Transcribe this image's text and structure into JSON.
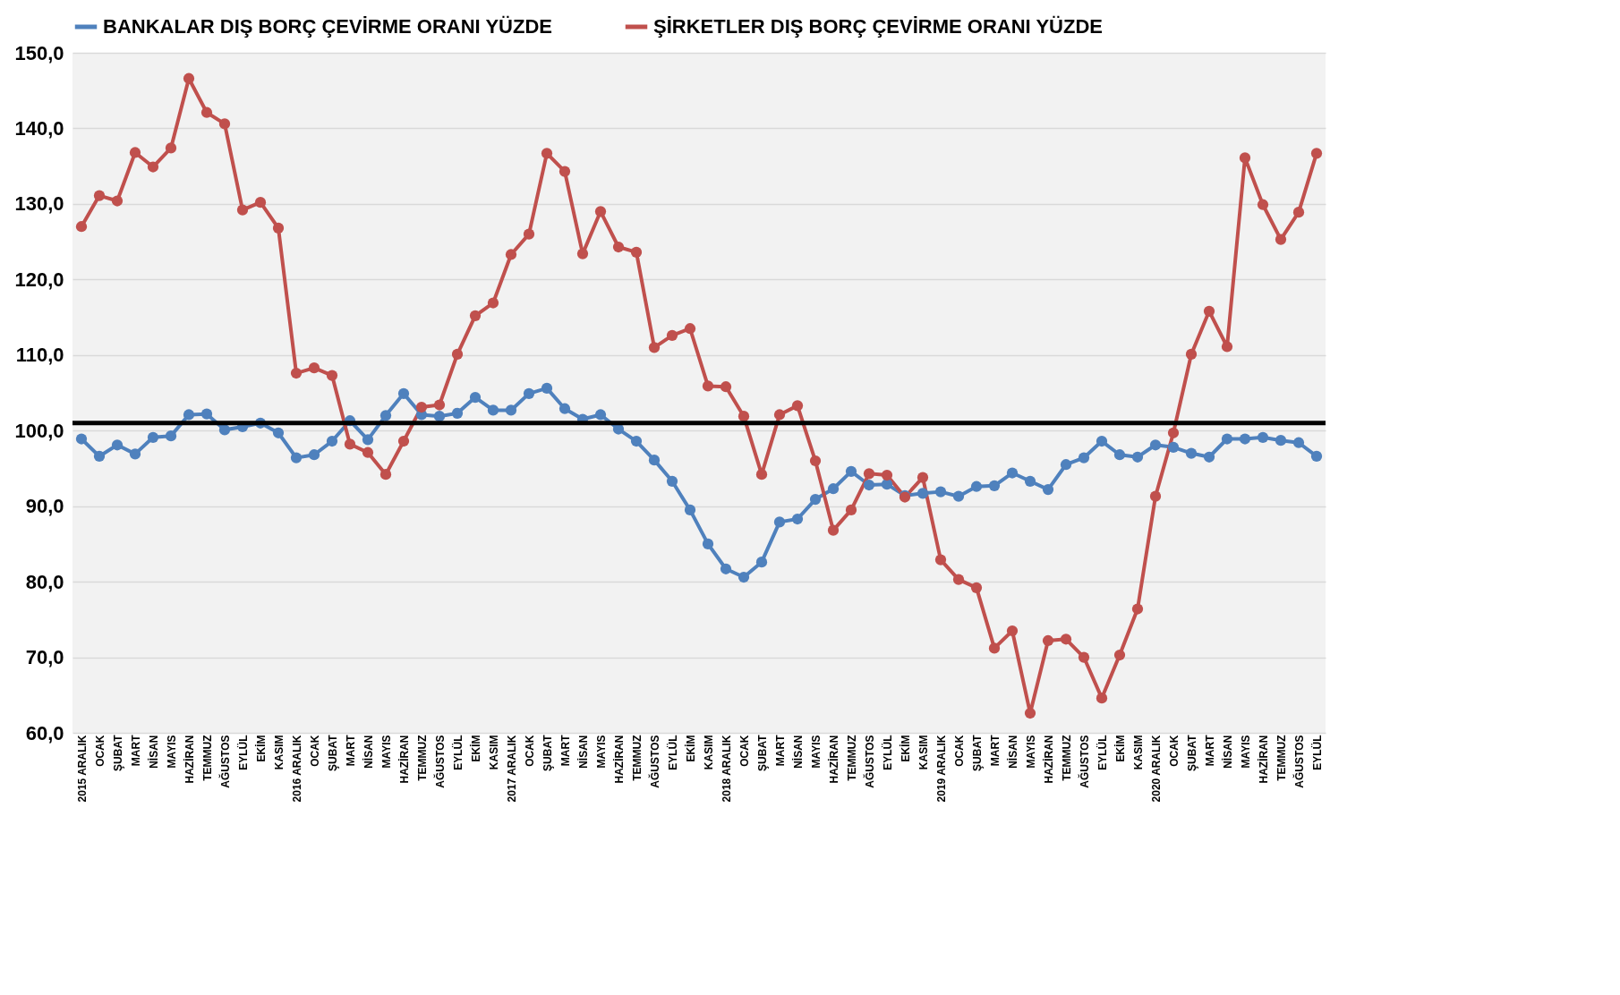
{
  "chart_data": {
    "type": "line",
    "categories": [
      "2015 ARALIK",
      "OCAK",
      "ŞUBAT",
      "MART",
      "NİSAN",
      "MAYIS",
      "HAZİRAN",
      "TEMMUZ",
      "AĞUSTOS",
      "EYLÜL",
      "EKİM",
      "KASIM",
      "2016 ARALIK",
      "OCAK",
      "ŞUBAT",
      "MART",
      "NİSAN",
      "MAYIS",
      "HAZİRAN",
      "TEMMUZ",
      "AĞUSTOS",
      "EYLÜL",
      "EKİM",
      "KASIM",
      "2017 ARALIK",
      "OCAK",
      "ŞUBAT",
      "MART",
      "NİSAN",
      "MAYIS",
      "HAZİRAN",
      "TEMMUZ",
      "AĞUSTOS",
      "EYLÜL",
      "EKİM",
      "KASIM",
      "2018 ARALIK",
      "OCAK",
      "ŞUBAT",
      "MART",
      "NİSAN",
      "MAYIS",
      "HAZİRAN",
      "TEMMUZ",
      "AĞUSTOS",
      "EYLÜL",
      "EKİM",
      "KASIM",
      "2019 ARALIK",
      "OCAK",
      "ŞUBAT",
      "MART",
      "NİSAN",
      "MAYIS",
      "HAZİRAN",
      "TEMMUZ",
      "AĞUSTOS",
      "EYLÜL",
      "EKİM",
      "KASIM",
      "2020 ARALIK",
      "OCAK",
      "ŞUBAT",
      "MART",
      "NİSAN",
      "MAYIS",
      "HAZİRAN",
      "TEMMUZ",
      "AĞUSTOS",
      "EYLÜL"
    ],
    "series": [
      {
        "name": "BANKALAR DIŞ BORÇ ÇEVİRME ORANI YÜZDE",
        "color": "#4f81bd",
        "values": [
          98.9,
          96.6,
          98.1,
          96.9,
          99.1,
          99.3,
          102.1,
          102.2,
          100.1,
          100.5,
          101.0,
          99.7,
          96.4,
          96.8,
          98.6,
          101.3,
          98.8,
          102.0,
          104.9,
          102.1,
          101.9,
          102.3,
          104.4,
          102.7,
          102.7,
          104.9,
          105.6,
          102.9,
          101.5,
          102.1,
          100.2,
          98.6,
          96.1,
          93.3,
          89.5,
          85.0,
          81.7,
          80.6,
          82.6,
          87.9,
          88.3,
          90.9,
          92.3,
          94.6,
          92.8,
          92.9,
          91.4,
          91.7,
          91.9,
          91.3,
          92.6,
          92.7,
          94.4,
          93.3,
          92.2,
          95.5,
          96.4,
          98.6,
          96.8,
          96.5,
          98.1,
          97.8,
          97.0,
          96.5,
          98.9,
          98.9,
          99.1,
          98.7,
          98.4,
          96.6
        ]
      },
      {
        "name": "ŞİRKETLER DIŞ BORÇ ÇEVİRME ORANI YÜZDE",
        "color": "#c0504d",
        "values": [
          127.0,
          131.1,
          130.4,
          136.8,
          134.9,
          137.4,
          146.6,
          142.1,
          140.6,
          129.2,
          130.2,
          126.8,
          107.6,
          108.3,
          107.3,
          98.2,
          97.1,
          94.2,
          98.6,
          103.1,
          103.4,
          110.1,
          115.2,
          116.9,
          123.3,
          126.0,
          136.7,
          134.3,
          123.4,
          129.0,
          124.3,
          123.6,
          111.0,
          112.6,
          113.5,
          105.9,
          105.8,
          101.9,
          94.2,
          102.1,
          103.3,
          96.0,
          86.8,
          89.5,
          94.3,
          94.1,
          91.2,
          93.8,
          82.9,
          80.3,
          79.2,
          71.2,
          73.5,
          62.6,
          72.2,
          72.4,
          70.0,
          64.6,
          70.3,
          76.4,
          91.3,
          99.7,
          110.1,
          115.8,
          111.1,
          136.1,
          129.9,
          125.3,
          128.9,
          136.7
        ]
      }
    ],
    "ylim": [
      60,
      150
    ],
    "yticks": [
      {
        "value": 60,
        "label": "60,0"
      },
      {
        "value": 70,
        "label": "70,0"
      },
      {
        "value": 80,
        "label": "80,0"
      },
      {
        "value": 90,
        "label": "90,0"
      },
      {
        "value": 100,
        "label": "100,0"
      },
      {
        "value": 110,
        "label": "110,0"
      },
      {
        "value": 120,
        "label": "120,0"
      },
      {
        "value": 130,
        "label": "130,0"
      },
      {
        "value": 140,
        "label": "140,0"
      },
      {
        "value": 150,
        "label": "150,0"
      }
    ],
    "ref_lines": [
      {
        "axis": "y",
        "value": 101,
        "color": "#000000"
      }
    ],
    "grid": "y",
    "legend": "top",
    "marker": "circle",
    "line_style": "solid"
  }
}
